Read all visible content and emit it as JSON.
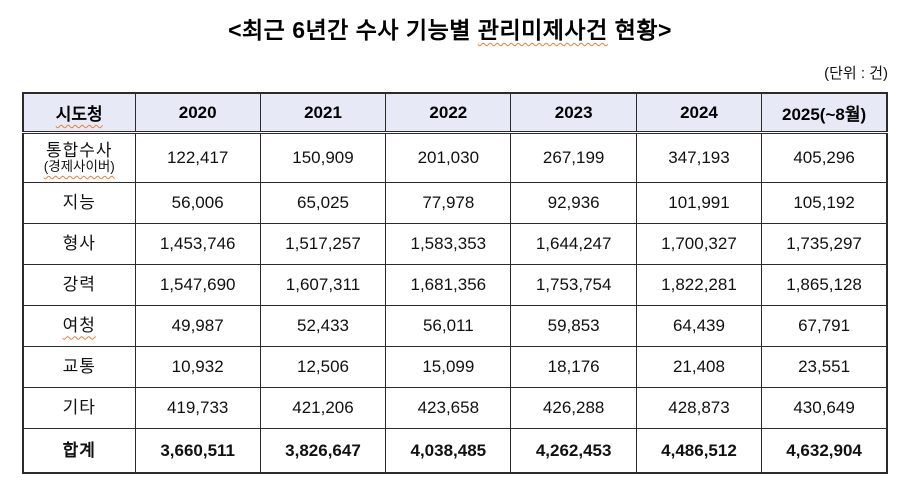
{
  "page": {
    "title": {
      "prefix": "<최근 6년간 수사 기능별 ",
      "spellcheck_word": "관리미제사건",
      "suffix": " 현황>"
    },
    "unit_note": "(단위 : 건)"
  },
  "table": {
    "columns": [
      {
        "label": "시도청",
        "squiggle": true
      },
      {
        "label": "2020",
        "squiggle": false
      },
      {
        "label": "2021",
        "squiggle": false
      },
      {
        "label": "2022",
        "squiggle": false
      },
      {
        "label": "2023",
        "squiggle": false
      },
      {
        "label": "2024",
        "squiggle": false
      },
      {
        "label": "2025(~8월)",
        "squiggle": false
      }
    ],
    "rows": [
      {
        "label": "통합수사",
        "sublabel": "(경제사이버)",
        "sublabel_squiggle": true,
        "squiggle": false,
        "is_total": false,
        "values": [
          "122,417",
          "150,909",
          "201,030",
          "267,199",
          "347,193",
          "405,296"
        ]
      },
      {
        "label": "지능",
        "squiggle": false,
        "is_total": false,
        "values": [
          "56,006",
          "65,025",
          "77,978",
          "92,936",
          "101,991",
          "105,192"
        ]
      },
      {
        "label": "형사",
        "squiggle": false,
        "is_total": false,
        "values": [
          "1,453,746",
          "1,517,257",
          "1,583,353",
          "1,644,247",
          "1,700,327",
          "1,735,297"
        ]
      },
      {
        "label": "강력",
        "squiggle": false,
        "is_total": false,
        "values": [
          "1,547,690",
          "1,607,311",
          "1,681,356",
          "1,753,754",
          "1,822,281",
          "1,865,128"
        ]
      },
      {
        "label": "여청",
        "squiggle": true,
        "is_total": false,
        "values": [
          "49,987",
          "52,433",
          "56,011",
          "59,853",
          "64,439",
          "67,791"
        ]
      },
      {
        "label": "교통",
        "squiggle": false,
        "is_total": false,
        "values": [
          "10,932",
          "12,506",
          "15,099",
          "18,176",
          "21,408",
          "23,551"
        ]
      },
      {
        "label": "기타",
        "squiggle": false,
        "is_total": false,
        "values": [
          "419,733",
          "421,206",
          "423,658",
          "426,288",
          "428,873",
          "430,649"
        ]
      },
      {
        "label": "합계",
        "squiggle": false,
        "is_total": true,
        "values": [
          "3,660,511",
          "3,826,647",
          "4,038,485",
          "4,262,453",
          "4,486,512",
          "4,632,904"
        ]
      }
    ]
  },
  "colors": {
    "header_bg": "#E7EAF6",
    "border": "#2b2b2b",
    "spellcheck_underline": "#ED7D31",
    "text": "#111111"
  }
}
